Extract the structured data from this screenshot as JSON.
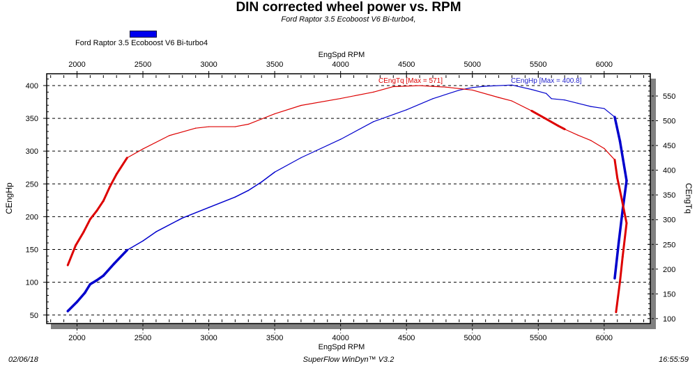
{
  "chart_data": {
    "type": "line",
    "title": "DIN corrected wheel power vs. RPM",
    "subtitle": "Ford Raptor 3.5 Ecoboost V6 Bi-turbo4,",
    "legend": {
      "entries": [
        "Ford Raptor 3.5 Ecoboost V6 Bi-turbo4"
      ],
      "placement": "top-left",
      "color": "#0000ee"
    },
    "xlabel_top": "EngSpd  RPM",
    "xlabel_bottom": "EngSpd  RPM",
    "ylabel_left": "CEngHp",
    "ylabel_right": "CEngTq",
    "xlim": [
      1770,
      6350
    ],
    "ylim_left": [
      37,
      418
    ],
    "ylim_right": [
      90,
      595
    ],
    "x_ticks": [
      2000,
      2500,
      3000,
      3500,
      4000,
      4500,
      5000,
      5500,
      6000
    ],
    "y_left_ticks": [
      50,
      100,
      150,
      200,
      250,
      300,
      350,
      400
    ],
    "y_right_ticks": [
      100,
      150,
      200,
      250,
      300,
      350,
      400,
      450,
      500,
      550
    ],
    "grid": true,
    "series": [
      {
        "name": "CEngHp",
        "axis": "left",
        "color": "#0000cc",
        "annotation": "CEngHp [Max = 400.8]",
        "points": [
          [
            1930,
            56
          ],
          [
            2000,
            70
          ],
          [
            2060,
            84
          ],
          [
            2100,
            97
          ],
          [
            2150,
            103
          ],
          [
            2200,
            110
          ],
          [
            2280,
            128
          ],
          [
            2380,
            149
          ],
          [
            2500,
            163
          ],
          [
            2600,
            177
          ],
          [
            2800,
            198
          ],
          [
            3000,
            214
          ],
          [
            3200,
            230
          ],
          [
            3300,
            240
          ],
          [
            3400,
            253
          ],
          [
            3500,
            268
          ],
          [
            3700,
            290
          ],
          [
            4000,
            318
          ],
          [
            4250,
            345
          ],
          [
            4500,
            363
          ],
          [
            4700,
            380
          ],
          [
            4900,
            393
          ],
          [
            5000,
            397
          ],
          [
            5100,
            399
          ],
          [
            5300,
            400.8
          ],
          [
            5450,
            394
          ],
          [
            5560,
            388
          ],
          [
            5600,
            380
          ],
          [
            5700,
            378
          ],
          [
            5800,
            373
          ],
          [
            5900,
            368
          ],
          [
            6000,
            365
          ],
          [
            6080,
            352
          ],
          [
            6120,
            315
          ],
          [
            6170,
            255
          ],
          [
            6140,
            210
          ],
          [
            6110,
            160
          ],
          [
            6080,
            106
          ]
        ]
      },
      {
        "name": "CEngTq",
        "axis": "right",
        "color": "#dd0000",
        "annotation": "CEngTq [Max = 571]",
        "points": [
          [
            1930,
            208
          ],
          [
            1990,
            248
          ],
          [
            2050,
            275
          ],
          [
            2100,
            301
          ],
          [
            2150,
            318
          ],
          [
            2200,
            338
          ],
          [
            2250,
            367
          ],
          [
            2300,
            392
          ],
          [
            2380,
            425
          ],
          [
            2500,
            443
          ],
          [
            2700,
            470
          ],
          [
            2900,
            485
          ],
          [
            3000,
            488
          ],
          [
            3200,
            488
          ],
          [
            3300,
            493
          ],
          [
            3500,
            514
          ],
          [
            3700,
            531
          ],
          [
            4000,
            545
          ],
          [
            4250,
            558
          ],
          [
            4400,
            569
          ],
          [
            4600,
            571
          ],
          [
            4800,
            568
          ],
          [
            5000,
            562
          ],
          [
            5200,
            547
          ],
          [
            5300,
            540
          ],
          [
            5450,
            520
          ],
          [
            5550,
            505
          ],
          [
            5650,
            490
          ],
          [
            5700,
            483
          ],
          [
            5800,
            471
          ],
          [
            5900,
            460
          ],
          [
            6000,
            444
          ],
          [
            6080,
            421
          ],
          [
            6100,
            384
          ],
          [
            6130,
            346
          ],
          [
            6170,
            293
          ],
          [
            6140,
            225
          ],
          [
            6120,
            175
          ],
          [
            6090,
            113
          ]
        ]
      }
    ]
  },
  "footer": {
    "date": "02/06/18",
    "software": "SuperFlow WinDyn™ V3.2",
    "time": "16:55:59"
  }
}
